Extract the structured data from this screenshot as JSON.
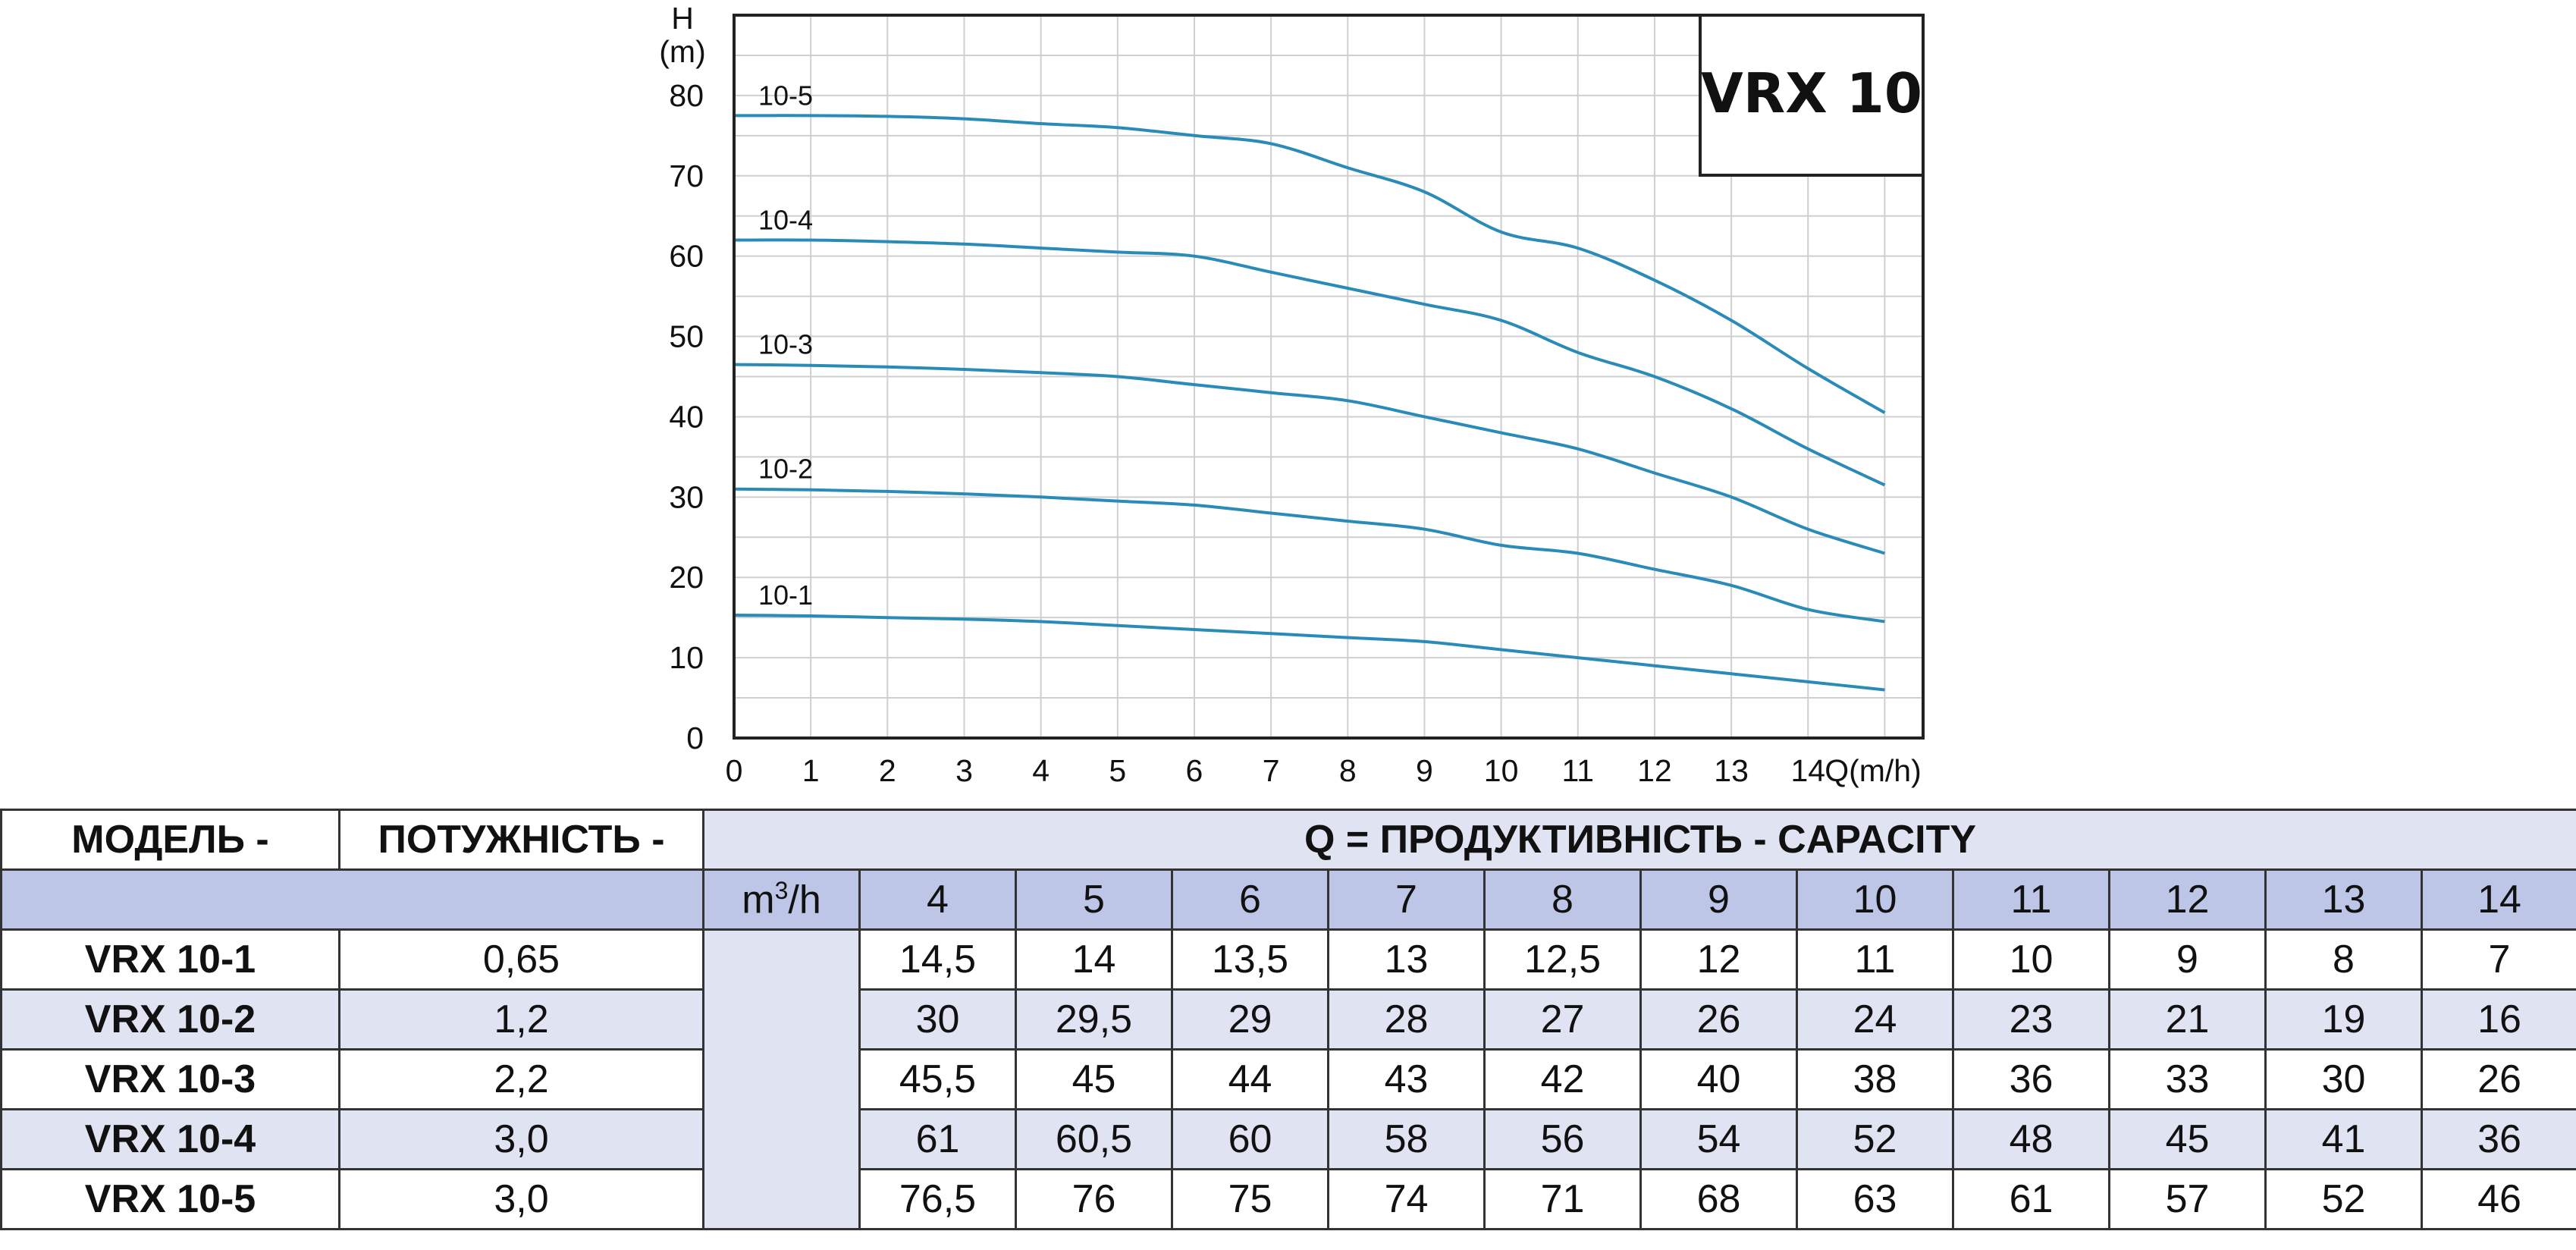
{
  "chart_data": {
    "type": "line",
    "brand_label": "VRX 10",
    "y_axis_label_top": "H",
    "y_axis_label_unit": "(m)",
    "x_axis_label": "Q(m/h)",
    "xlim": [
      0,
      15.5
    ],
    "ylim": [
      0,
      90
    ],
    "x_ticks": [
      "0",
      "1",
      "2",
      "3",
      "4",
      "5",
      "6",
      "7",
      "8",
      "9",
      "10",
      "11",
      "12",
      "13",
      "14"
    ],
    "y_ticks": [
      "0",
      "10",
      "20",
      "30",
      "40",
      "50",
      "60",
      "70",
      "80"
    ],
    "grid": true,
    "line_color": "#2b8bb8",
    "series": [
      {
        "name": "10-1",
        "x": [
          0,
          1,
          2,
          3,
          4,
          5,
          6,
          7,
          8,
          9,
          10,
          11,
          12,
          13,
          14,
          15
        ],
        "values": [
          15.3,
          15.2,
          15.0,
          14.8,
          14.5,
          14.0,
          13.5,
          13.0,
          12.5,
          12.0,
          11.0,
          10.0,
          9.0,
          8.0,
          7.0,
          6.0
        ]
      },
      {
        "name": "10-2",
        "x": [
          0,
          1,
          2,
          3,
          4,
          5,
          6,
          7,
          8,
          9,
          10,
          11,
          12,
          13,
          14,
          15
        ],
        "values": [
          31.0,
          30.9,
          30.7,
          30.4,
          30.0,
          29.5,
          29.0,
          28.0,
          27.0,
          26.0,
          24.0,
          23.0,
          21.0,
          19.0,
          16.0,
          14.5
        ]
      },
      {
        "name": "10-3",
        "x": [
          0,
          1,
          2,
          3,
          4,
          5,
          6,
          7,
          8,
          9,
          10,
          11,
          12,
          13,
          14,
          15
        ],
        "values": [
          46.5,
          46.4,
          46.2,
          45.9,
          45.5,
          45.0,
          44.0,
          43.0,
          42.0,
          40.0,
          38.0,
          36.0,
          33.0,
          30.0,
          26.0,
          23.0
        ]
      },
      {
        "name": "10-4",
        "x": [
          0,
          1,
          2,
          3,
          4,
          5,
          6,
          7,
          8,
          9,
          10,
          11,
          12,
          13,
          14,
          15
        ],
        "values": [
          62.0,
          62.0,
          61.8,
          61.5,
          61.0,
          60.5,
          60.0,
          58.0,
          56.0,
          54.0,
          52.0,
          48.0,
          45.0,
          41.0,
          36.0,
          31.5
        ]
      },
      {
        "name": "10-5",
        "x": [
          0,
          1,
          2,
          3,
          4,
          5,
          6,
          7,
          8,
          9,
          10,
          11,
          12,
          13,
          14,
          15
        ],
        "values": [
          77.5,
          77.5,
          77.4,
          77.1,
          76.5,
          76.0,
          75.0,
          74.0,
          71.0,
          68.0,
          63.0,
          61.0,
          57.0,
          52.0,
          46.0,
          40.5
        ]
      }
    ]
  },
  "table": {
    "header": {
      "model": "МОДЕЛЬ -",
      "power": "ПОТУЖНІСТЬ -",
      "capacity": "Q = ПРОДУКТИВНІСТЬ - CAPACITY"
    },
    "unit_base": "m",
    "unit_sup": "3",
    "unit_tail": "/h",
    "q_values": [
      "4",
      "5",
      "6",
      "7",
      "8",
      "9",
      "10",
      "11",
      "12",
      "13",
      "14"
    ],
    "rows": [
      {
        "model": "VRX 10-1",
        "power": "0,65",
        "h": [
          "14,5",
          "14",
          "13,5",
          "13",
          "12,5",
          "12",
          "11",
          "10",
          "9",
          "8",
          "7"
        ]
      },
      {
        "model": "VRX 10-2",
        "power": "1,2",
        "h": [
          "30",
          "29,5",
          "29",
          "28",
          "27",
          "26",
          "24",
          "23",
          "21",
          "19",
          "16"
        ]
      },
      {
        "model": "VRX 10-3",
        "power": "2,2",
        "h": [
          "45,5",
          "45",
          "44",
          "43",
          "42",
          "40",
          "38",
          "36",
          "33",
          "30",
          "26"
        ]
      },
      {
        "model": "VRX 10-4",
        "power": "3,0",
        "h": [
          "61",
          "60,5",
          "60",
          "58",
          "56",
          "54",
          "52",
          "48",
          "45",
          "41",
          "36"
        ]
      },
      {
        "model": "VRX 10-5",
        "power": "3,0",
        "h": [
          "76,5",
          "76",
          "75",
          "74",
          "71",
          "68",
          "63",
          "61",
          "57",
          "52",
          "46"
        ]
      }
    ]
  }
}
